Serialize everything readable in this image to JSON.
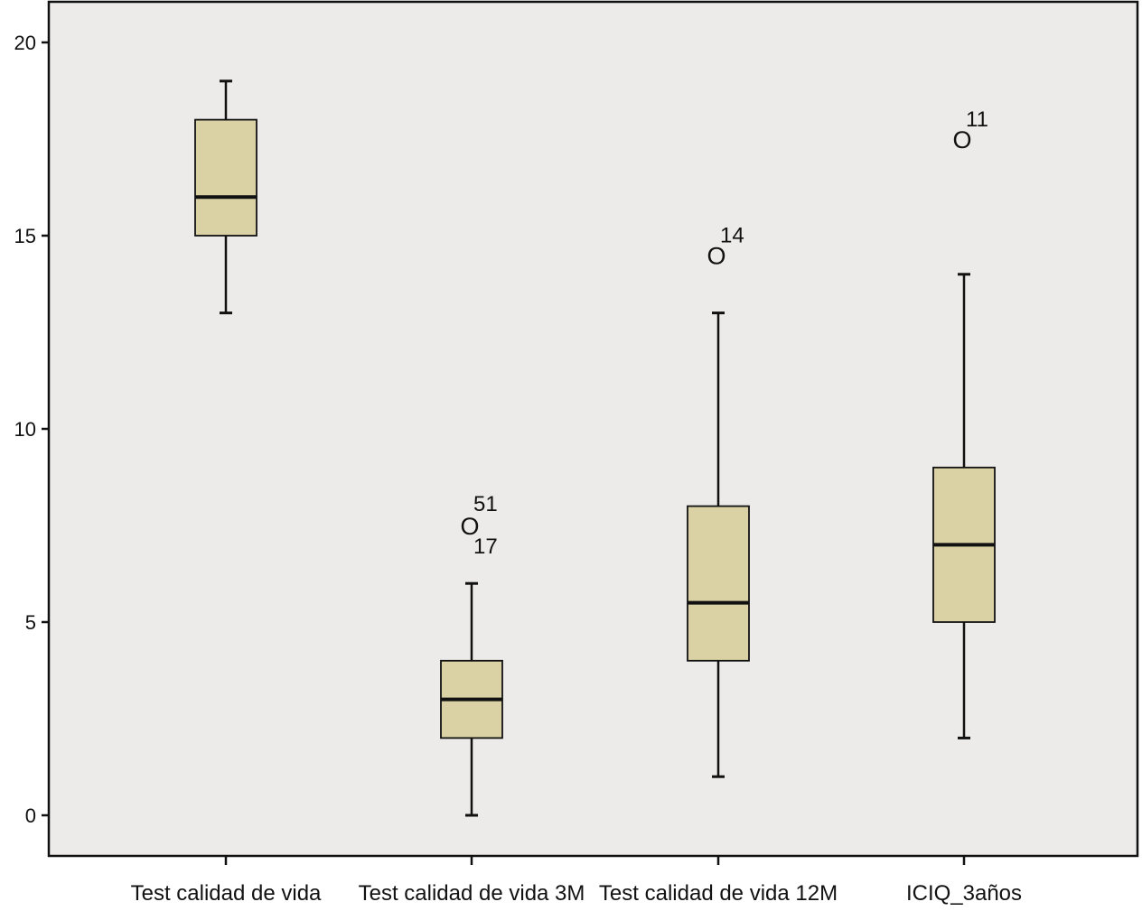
{
  "chart_data": {
    "type": "boxplot",
    "title": "",
    "xlabel": "",
    "ylabel": "",
    "ylim": [
      -1.1,
      21.0
    ],
    "yticks": [
      0,
      5,
      10,
      15,
      20
    ],
    "ytick_labels": [
      "0",
      "5",
      "10",
      "15",
      "20"
    ],
    "grid": false,
    "legend": "none",
    "categories": [
      "Test calidad de vida",
      "Test calidad de vida 3M",
      "Test calidad de vida 12M",
      "ICIQ_3años"
    ],
    "boxes": [
      {
        "min": 13,
        "q1": 15,
        "median": 16,
        "q3": 18,
        "max": 19,
        "outliers": []
      },
      {
        "min": 0,
        "q1": 2,
        "median": 3,
        "q3": 4,
        "max": 6,
        "outliers": [
          {
            "value": 7.5,
            "labels": [
              "51",
              "17"
            ]
          }
        ]
      },
      {
        "min": 1,
        "q1": 4,
        "median": 5.5,
        "q3": 8,
        "max": 13,
        "outliers": [
          {
            "value": 14.5,
            "labels": [
              "14"
            ]
          }
        ]
      },
      {
        "min": 2,
        "q1": 5,
        "median": 7,
        "q3": 9,
        "max": 14,
        "outliers": [
          {
            "value": 17.5,
            "labels": [
              "11"
            ]
          }
        ]
      }
    ],
    "outlier_marker": "O",
    "colors": {
      "plot_background": "#ecebe9",
      "box_fill": "#dad2a4",
      "line": "#111111"
    }
  }
}
